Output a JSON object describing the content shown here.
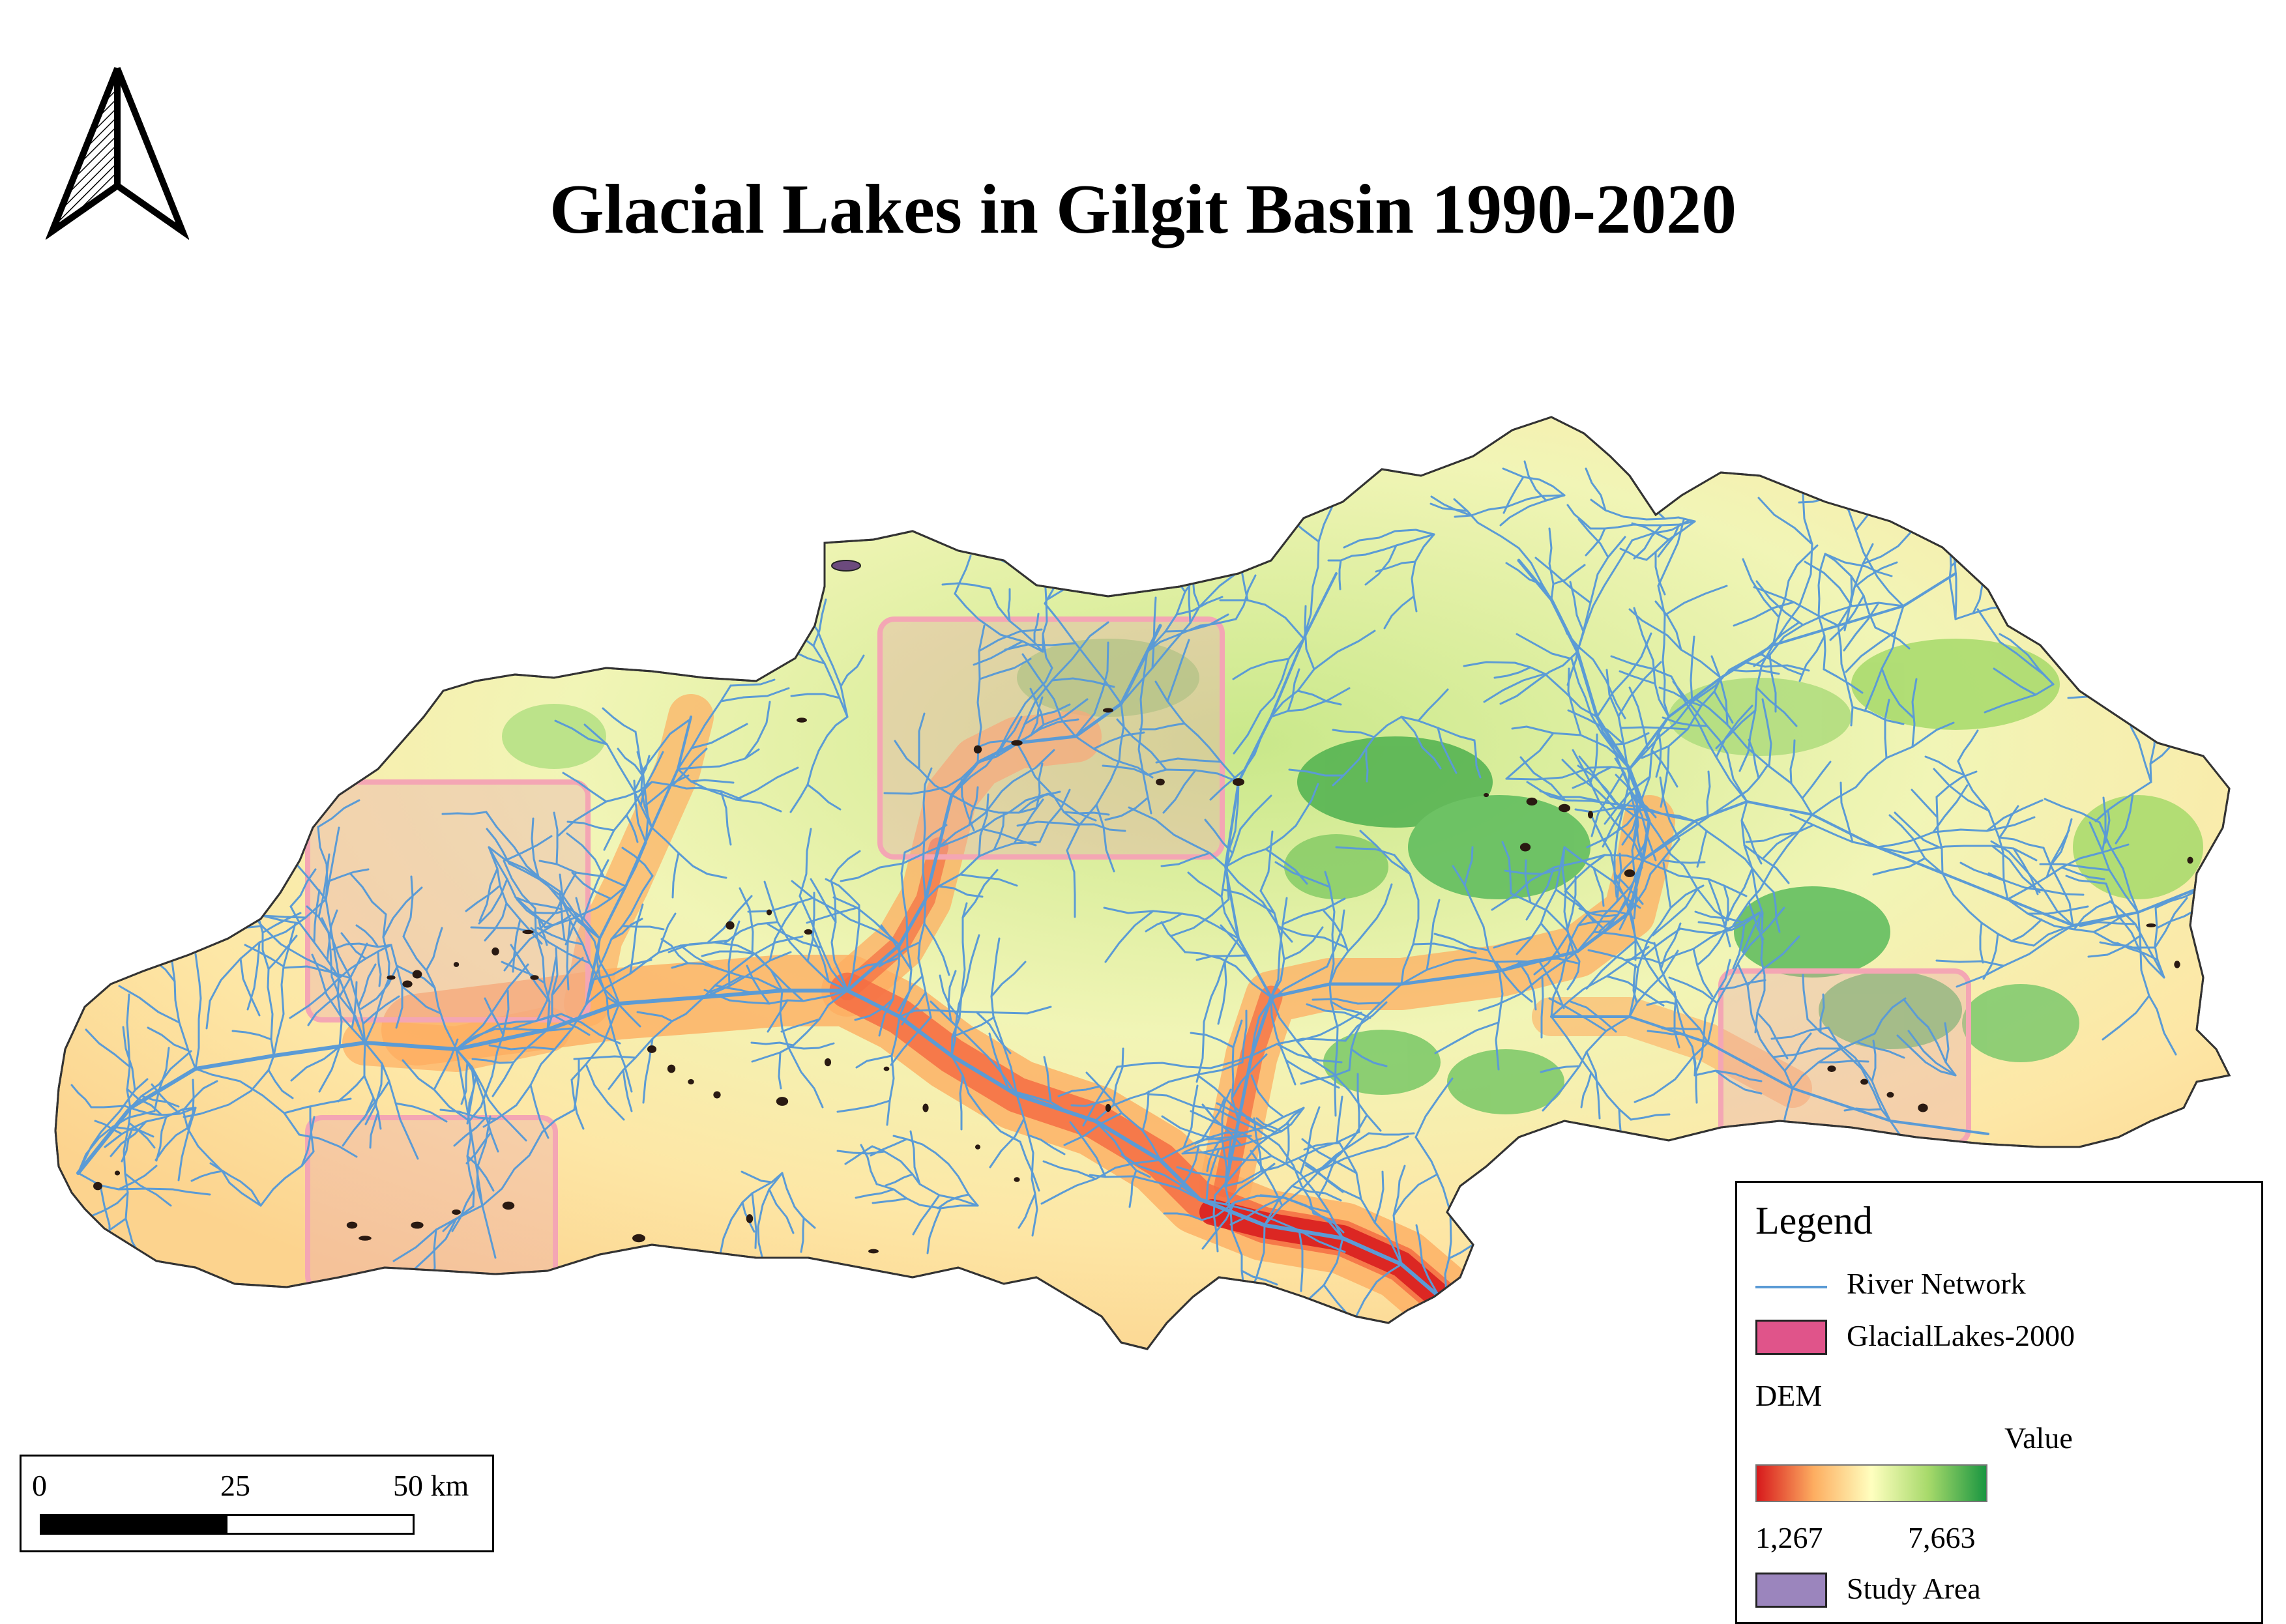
{
  "title": "Glacial Lakes in Gilgit Basin 1990-2020",
  "north_arrow_icon": "north-arrow-icon",
  "scale_bar": {
    "labels": [
      "0",
      "25",
      "50 km"
    ]
  },
  "legend": {
    "title": "Legend",
    "items": [
      {
        "label": "River Network",
        "symbol": "line",
        "color": "#5b9bd5"
      },
      {
        "label": "GlacialLakes-2000",
        "symbol": "fill",
        "color": "#e0548a"
      }
    ],
    "dem": {
      "label": "DEM",
      "value_label": "Value",
      "min": "1,267",
      "max": "7,663",
      "ramp": [
        "#d7191c",
        "#fdae61",
        "#ffffbf",
        "#a6d96a",
        "#1a9641"
      ]
    },
    "study_area": {
      "label": "Study Area",
      "color": "#9b85bd"
    }
  },
  "colors": {
    "river": "#5b9bd5",
    "lake": "#2a1a12",
    "highlight_fill": "#e7a3b0",
    "highlight_border": "#f4a6b4",
    "basin_outline": "#333333"
  }
}
